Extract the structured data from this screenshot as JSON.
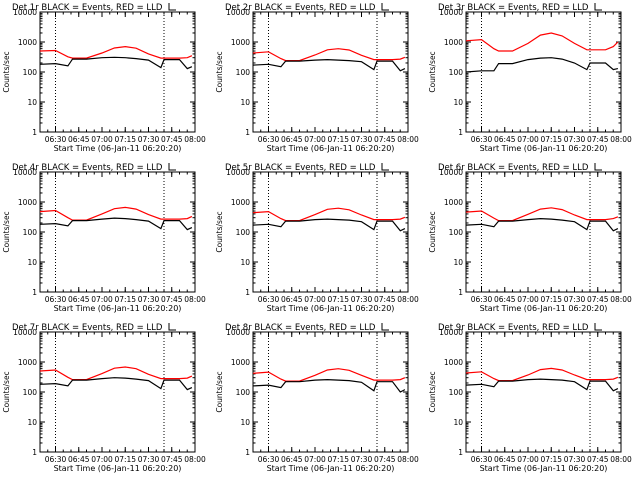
{
  "figure": {
    "colors": {
      "events": "#000000",
      "lld": "#ff0000",
      "background": "#ffffff",
      "axis": "#000000"
    },
    "x_ticks": [
      "06:30",
      "06:45",
      "07:00",
      "07:15",
      "07:30",
      "07:45",
      "08:00"
    ],
    "y_ticks": [
      "1",
      "10",
      "100",
      "1000",
      "10000"
    ],
    "ylabel": "Counts/sec",
    "xlabel": "Start Time (06-Jan-11 06:20:20)"
  },
  "chart_data": [
    {
      "type": "line",
      "title": "Det 1r BLACK = Events, RED = LLD",
      "xlabel": "Start Time (06-Jan-11 06:20:20)",
      "ylabel": "Counts/sec",
      "y_scale": "log",
      "ylim": [
        1,
        10000
      ],
      "xlim": [
        "06:20",
        "08:00"
      ],
      "x_ticks": [
        "06:30",
        "06:45",
        "07:00",
        "07:15",
        "07:30",
        "07:45",
        "08:00"
      ],
      "vlines": [
        "06:30",
        "07:40"
      ],
      "x": [
        "06:20",
        "06:30",
        "06:38",
        "06:41",
        "06:50",
        "07:00",
        "07:08",
        "07:15",
        "07:22",
        "07:30",
        "07:38",
        "07:40",
        "07:50",
        "07:55",
        "07:58"
      ],
      "series": [
        {
          "name": "LLD",
          "color": "#ff0000",
          "values": [
            500,
            520,
            320,
            290,
            290,
            430,
            630,
            700,
            620,
            400,
            290,
            290,
            290,
            300,
            350
          ]
        },
        {
          "name": "Events",
          "color": "#000000",
          "values": [
            180,
            190,
            160,
            270,
            270,
            300,
            310,
            300,
            280,
            250,
            140,
            260,
            260,
            130,
            150
          ]
        }
      ]
    },
    {
      "type": "line",
      "title": "Det 2r BLACK = Events, RED = LLD",
      "xlabel": "Start Time (06-Jan-11 06:20:20)",
      "ylabel": "Counts/sec",
      "y_scale": "log",
      "ylim": [
        1,
        10000
      ],
      "xlim": [
        "06:20",
        "08:00"
      ],
      "x_ticks": [
        "06:30",
        "06:45",
        "07:00",
        "07:15",
        "07:30",
        "07:45",
        "08:00"
      ],
      "vlines": [
        "06:30",
        "07:40"
      ],
      "x": [
        "06:20",
        "06:30",
        "06:38",
        "06:41",
        "06:50",
        "07:00",
        "07:08",
        "07:15",
        "07:22",
        "07:30",
        "07:38",
        "07:40",
        "07:50",
        "07:55",
        "07:58"
      ],
      "series": [
        {
          "name": "LLD",
          "color": "#ff0000",
          "values": [
            430,
            470,
            280,
            240,
            240,
            370,
            550,
            600,
            540,
            360,
            260,
            260,
            260,
            270,
            310
          ]
        },
        {
          "name": "Events",
          "color": "#000000",
          "values": [
            170,
            180,
            150,
            230,
            230,
            250,
            260,
            250,
            240,
            220,
            120,
            230,
            230,
            110,
            130
          ]
        }
      ]
    },
    {
      "type": "line",
      "title": "Det 3r BLACK = Events, RED = LLD",
      "xlabel": "Start Time (06-Jan-11 06:20:20)",
      "ylabel": "Counts/sec",
      "y_scale": "log",
      "ylim": [
        1,
        10000
      ],
      "xlim": [
        "06:20",
        "08:00"
      ],
      "x_ticks": [
        "06:30",
        "06:45",
        "07:00",
        "07:15",
        "07:30",
        "07:45",
        "08:00"
      ],
      "vlines": [
        "06:30",
        "07:40"
      ],
      "x": [
        "06:20",
        "06:30",
        "06:38",
        "06:41",
        "06:50",
        "07:00",
        "07:08",
        "07:15",
        "07:22",
        "07:30",
        "07:38",
        "07:40",
        "07:50",
        "07:55",
        "07:58"
      ],
      "series": [
        {
          "name": "LLD",
          "color": "#ff0000",
          "values": [
            1100,
            1200,
            600,
            500,
            500,
            900,
            1700,
            2000,
            1600,
            900,
            550,
            550,
            550,
            700,
            1000
          ]
        },
        {
          "name": "Events",
          "color": "#000000",
          "values": [
            100,
            110,
            110,
            190,
            190,
            260,
            290,
            300,
            270,
            200,
            120,
            200,
            200,
            120,
            130
          ]
        }
      ]
    },
    {
      "type": "line",
      "title": "Det 4r BLACK = Events, RED = LLD",
      "xlabel": "Start Time (06-Jan-11 06:20:20)",
      "ylabel": "Counts/sec",
      "y_scale": "log",
      "ylim": [
        1,
        10000
      ],
      "xlim": [
        "06:20",
        "08:00"
      ],
      "x_ticks": [
        "06:30",
        "06:45",
        "07:00",
        "07:15",
        "07:30",
        "07:45",
        "08:00"
      ],
      "vlines": [
        "06:30",
        "07:40"
      ],
      "x": [
        "06:20",
        "06:30",
        "06:38",
        "06:41",
        "06:50",
        "07:00",
        "07:08",
        "07:15",
        "07:22",
        "07:30",
        "07:38",
        "07:40",
        "07:50",
        "07:55",
        "07:58"
      ],
      "series": [
        {
          "name": "LLD",
          "color": "#ff0000",
          "values": [
            480,
            520,
            300,
            250,
            250,
            400,
            600,
            660,
            580,
            380,
            270,
            270,
            270,
            280,
            330
          ]
        },
        {
          "name": "Events",
          "color": "#000000",
          "values": [
            180,
            190,
            160,
            240,
            240,
            270,
            290,
            280,
            260,
            230,
            130,
            240,
            240,
            120,
            140
          ]
        }
      ]
    },
    {
      "type": "line",
      "title": "Det 5r BLACK = Events, RED = LLD",
      "xlabel": "Start Time (06-Jan-11 06:20:20)",
      "ylabel": "Counts/sec",
      "y_scale": "log",
      "ylim": [
        1,
        10000
      ],
      "xlim": [
        "06:20",
        "08:00"
      ],
      "x_ticks": [
        "06:30",
        "06:45",
        "07:00",
        "07:15",
        "07:30",
        "07:45",
        "08:00"
      ],
      "vlines": [
        "06:30",
        "07:40"
      ],
      "x": [
        "06:20",
        "06:30",
        "06:38",
        "06:41",
        "06:50",
        "07:00",
        "07:08",
        "07:15",
        "07:22",
        "07:30",
        "07:38",
        "07:40",
        "07:50",
        "07:55",
        "07:58"
      ],
      "series": [
        {
          "name": "LLD",
          "color": "#ff0000",
          "values": [
            440,
            480,
            280,
            240,
            240,
            380,
            570,
            620,
            550,
            370,
            260,
            260,
            260,
            270,
            310
          ]
        },
        {
          "name": "Events",
          "color": "#000000",
          "values": [
            170,
            180,
            150,
            230,
            230,
            260,
            270,
            260,
            250,
            220,
            120,
            230,
            230,
            110,
            130
          ]
        }
      ]
    },
    {
      "type": "line",
      "title": "Det 6r BLACK = Events, RED = LLD",
      "xlabel": "Start Time (06-Jan-11 06:20:20)",
      "ylabel": "Counts/sec",
      "y_scale": "log",
      "ylim": [
        1,
        10000
      ],
      "xlim": [
        "06:20",
        "08:00"
      ],
      "x_ticks": [
        "06:30",
        "06:45",
        "07:00",
        "07:15",
        "07:30",
        "07:45",
        "08:00"
      ],
      "vlines": [
        "06:30",
        "07:40"
      ],
      "x": [
        "06:20",
        "06:30",
        "06:38",
        "06:41",
        "06:50",
        "07:00",
        "07:08",
        "07:15",
        "07:22",
        "07:30",
        "07:38",
        "07:40",
        "07:50",
        "07:55",
        "07:58"
      ],
      "series": [
        {
          "name": "LLD",
          "color": "#ff0000",
          "values": [
            460,
            500,
            290,
            240,
            240,
            390,
            580,
            640,
            560,
            370,
            260,
            260,
            260,
            280,
            320
          ]
        },
        {
          "name": "Events",
          "color": "#000000",
          "values": [
            170,
            180,
            150,
            230,
            230,
            260,
            280,
            270,
            250,
            220,
            120,
            230,
            230,
            110,
            130
          ]
        }
      ]
    },
    {
      "type": "line",
      "title": "Det 7r BLACK = Events, RED = LLD",
      "xlabel": "Start Time (06-Jan-11 06:20:20)",
      "ylabel": "Counts/sec",
      "y_scale": "log",
      "ylim": [
        1,
        10000
      ],
      "xlim": [
        "06:20",
        "08:00"
      ],
      "x_ticks": [
        "06:30",
        "06:45",
        "07:00",
        "07:15",
        "07:30",
        "07:45",
        "08:00"
      ],
      "vlines": [
        "06:30",
        "07:40"
      ],
      "x": [
        "06:20",
        "06:30",
        "06:38",
        "06:41",
        "06:50",
        "07:00",
        "07:08",
        "07:15",
        "07:22",
        "07:30",
        "07:38",
        "07:40",
        "07:50",
        "07:55",
        "07:58"
      ],
      "series": [
        {
          "name": "LLD",
          "color": "#ff0000",
          "values": [
            500,
            540,
            310,
            260,
            260,
            410,
            620,
            680,
            600,
            390,
            280,
            280,
            280,
            290,
            340
          ]
        },
        {
          "name": "Events",
          "color": "#000000",
          "values": [
            180,
            190,
            160,
            250,
            250,
            280,
            300,
            290,
            270,
            240,
            130,
            250,
            250,
            120,
            140
          ]
        }
      ]
    },
    {
      "type": "line",
      "title": "Det 8r BLACK = Events, RED = LLD",
      "xlabel": "Start Time (06-Jan-11 06:20:20)",
      "ylabel": "Counts/sec",
      "y_scale": "log",
      "ylim": [
        1,
        10000
      ],
      "xlim": [
        "06:20",
        "08:00"
      ],
      "x_ticks": [
        "06:30",
        "06:45",
        "07:00",
        "07:15",
        "07:30",
        "07:45",
        "08:00"
      ],
      "vlines": [
        "06:30",
        "07:40"
      ],
      "x": [
        "06:20",
        "06:30",
        "06:38",
        "06:41",
        "06:50",
        "07:00",
        "07:08",
        "07:15",
        "07:22",
        "07:30",
        "07:38",
        "07:40",
        "07:50",
        "07:55",
        "07:58"
      ],
      "series": [
        {
          "name": "LLD",
          "color": "#ff0000",
          "values": [
            420,
            460,
            270,
            230,
            230,
            360,
            540,
            600,
            530,
            360,
            250,
            250,
            250,
            260,
            300
          ]
        },
        {
          "name": "Events",
          "color": "#000000",
          "values": [
            160,
            170,
            140,
            220,
            220,
            250,
            260,
            250,
            240,
            210,
            110,
            220,
            220,
            100,
            120
          ]
        }
      ]
    },
    {
      "type": "line",
      "title": "Det 9r BLACK = Events, RED = LLD",
      "xlabel": "Start Time (06-Jan-11 06:20:20)",
      "ylabel": "Counts/sec",
      "y_scale": "log",
      "ylim": [
        1,
        10000
      ],
      "xlim": [
        "06:20",
        "08:00"
      ],
      "x_ticks": [
        "06:30",
        "06:45",
        "07:00",
        "07:15",
        "07:30",
        "07:45",
        "08:00"
      ],
      "vlines": [
        "06:30",
        "07:40"
      ],
      "x": [
        "06:20",
        "06:30",
        "06:38",
        "06:41",
        "06:50",
        "07:00",
        "07:08",
        "07:15",
        "07:22",
        "07:30",
        "07:38",
        "07:40",
        "07:50",
        "07:55",
        "07:58"
      ],
      "series": [
        {
          "name": "LLD",
          "color": "#ff0000",
          "values": [
            430,
            470,
            280,
            240,
            240,
            370,
            560,
            610,
            540,
            370,
            260,
            260,
            260,
            270,
            310
          ]
        },
        {
          "name": "Events",
          "color": "#000000",
          "values": [
            170,
            180,
            150,
            230,
            230,
            260,
            270,
            260,
            250,
            220,
            120,
            230,
            230,
            110,
            130
          ]
        }
      ]
    }
  ]
}
